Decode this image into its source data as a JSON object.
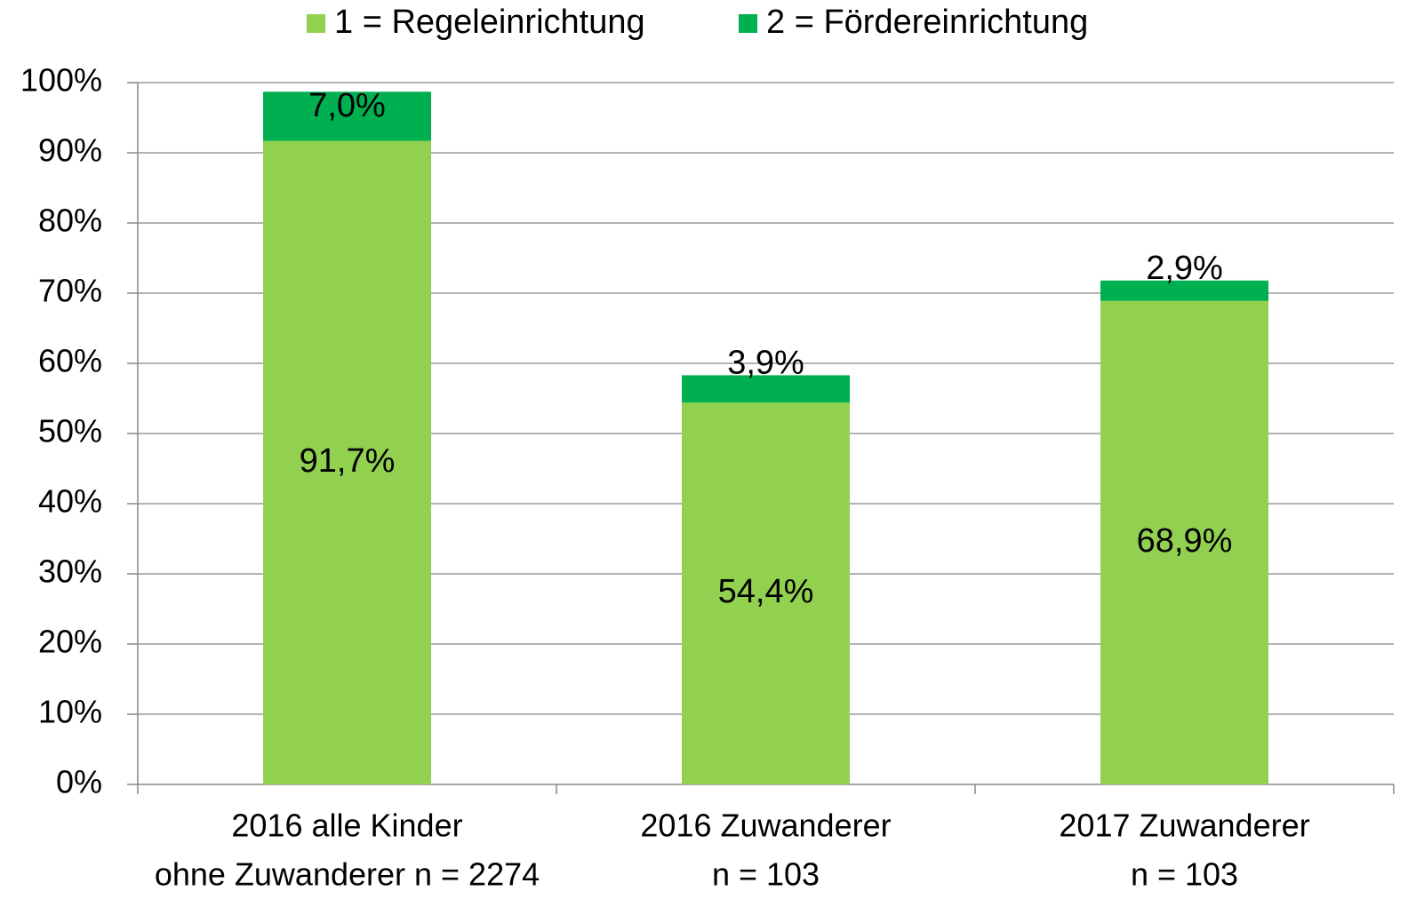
{
  "chart_data": {
    "type": "stacked_bar",
    "categories": [
      [
        "2016 alle Kinder",
        "ohne Zuwanderer n = 2274"
      ],
      [
        "2016 Zuwanderer",
        "n = 103"
      ],
      [
        "2017 Zuwanderer",
        "n = 103"
      ]
    ],
    "series": [
      {
        "name": "1 = Regeleinrichtung",
        "color": "#92d050",
        "values": [
          91.7,
          54.4,
          68.9
        ],
        "value_labels": [
          "91,7%",
          "54,4%",
          "68,9%"
        ]
      },
      {
        "name": "2 = Fördereinrichtung",
        "color": "#00b050",
        "values": [
          7.0,
          3.9,
          2.9
        ],
        "value_labels": [
          "7,0%",
          "3,9%",
          "2,9%"
        ]
      }
    ],
    "ylim": [
      0,
      100
    ],
    "yticks": [
      {
        "value": 0,
        "label": "0%"
      },
      {
        "value": 10,
        "label": "10%"
      },
      {
        "value": 20,
        "label": "20%"
      },
      {
        "value": 30,
        "label": "30%"
      },
      {
        "value": 40,
        "label": "40%"
      },
      {
        "value": 50,
        "label": "50%"
      },
      {
        "value": 60,
        "label": "60%"
      },
      {
        "value": 70,
        "label": "70%"
      },
      {
        "value": 80,
        "label": "80%"
      },
      {
        "value": 90,
        "label": "90%"
      },
      {
        "value": 100,
        "label": "100%"
      }
    ],
    "grid": true,
    "legend": "top"
  }
}
